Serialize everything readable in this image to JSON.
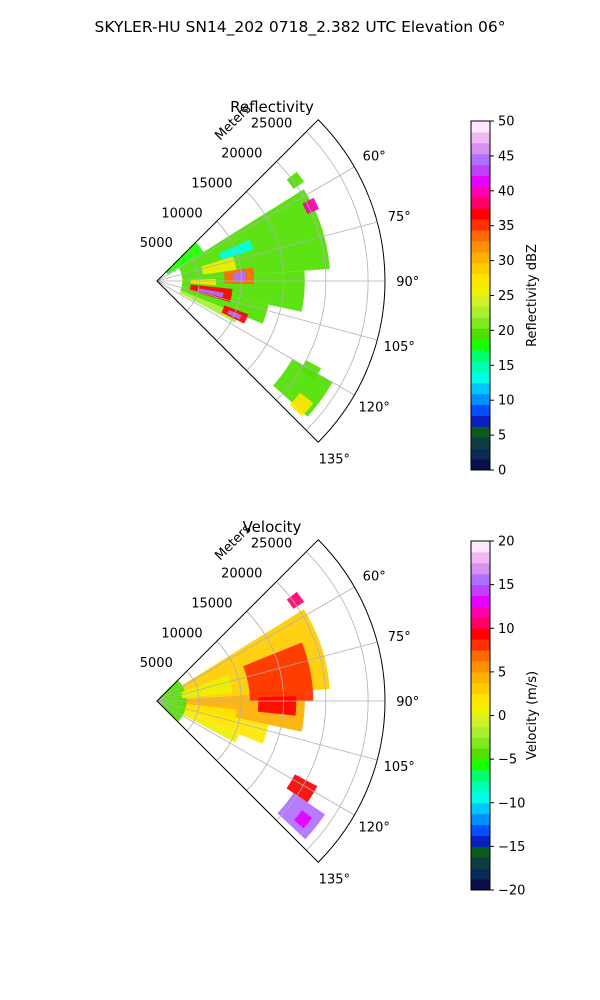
{
  "figure": {
    "suptitle": "SKYLER-HU  SN14_202  0718_2.382 UTC Elevation 06°"
  },
  "chart_data": [
    {
      "type": "heatmap",
      "subtype": "polar-sector",
      "title": "Reflectivity",
      "radial_label": "Meters",
      "radial_ticks": [
        5000,
        10000,
        15000,
        20000,
        25000
      ],
      "radial_tick_labels": [
        "5000",
        "10000",
        "15000",
        "20000",
        "25000"
      ],
      "angle_ticks": [
        60,
        75,
        90,
        105,
        120,
        135
      ],
      "angle_tick_labels": [
        "60°",
        "75°",
        "90°",
        "105°",
        "120°",
        "135°"
      ],
      "angle_range": [
        45,
        135
      ],
      "radial_max": 27000,
      "grid": true,
      "colorbar": {
        "label": "Reflectivity dBZ",
        "range": [
          0,
          50
        ],
        "ticks": [
          0,
          5,
          10,
          15,
          20,
          25,
          30,
          35,
          40,
          45,
          50
        ],
        "tick_labels": [
          "0",
          "5",
          "10",
          "15",
          "20",
          "25",
          "30",
          "35",
          "40",
          "45",
          "50"
        ],
        "colors": [
          "#0a0f4a",
          "#0a2a55",
          "#0d3d3d",
          "#0b5a1e",
          "#0a1fc0",
          "#0050ff",
          "#0090ff",
          "#00c8ff",
          "#00ffe6",
          "#00ffb0",
          "#00ff6e",
          "#1aff00",
          "#4fe000",
          "#7fe81e",
          "#a8f030",
          "#d0f028",
          "#eef000",
          "#ffe600",
          "#ffcc00",
          "#ffb000",
          "#ff9000",
          "#ff6a00",
          "#ff3000",
          "#ff0000",
          "#ff0066",
          "#ff00aa",
          "#e600ff",
          "#c040ff",
          "#b070ff",
          "#d890f0",
          "#f0b8f0",
          "#ffe6ff"
        ]
      },
      "echoes": [
        {
          "az": [
            52,
            56
          ],
          "r": [
            19500,
            21000
          ],
          "value": 20
        },
        {
          "az": [
            58,
            86
          ],
          "r": [
            3000,
            20500
          ],
          "value": 20
        },
        {
          "az": [
            86,
            102
          ],
          "r": [
            3000,
            17500
          ],
          "value": 20
        },
        {
          "az": [
            102,
            112
          ],
          "r": [
            3000,
            13500
          ],
          "value": 20
        },
        {
          "az": [
            112,
            118
          ],
          "r": [
            3000,
            10500
          ],
          "value": 22
        },
        {
          "az": [
            45,
            58
          ],
          "r": [
            1500,
            6500
          ],
          "value": 18
        },
        {
          "az": [
            120,
            132
          ],
          "r": [
            18500,
            24000
          ],
          "value": 20
        },
        {
          "az": [
            118,
            122
          ],
          "r": [
            20000,
            22000
          ],
          "value": 20
        },
        {
          "az": [
            128,
            133
          ],
          "r": [
            21500,
            23500
          ],
          "value": 28
        },
        {
          "az": [
            62,
            66
          ],
          "r": [
            19500,
            21000
          ],
          "value": 40
        },
        {
          "az": [
            82,
            92
          ],
          "r": [
            8000,
            11500
          ],
          "value": 34
        },
        {
          "az": [
            84,
            90
          ],
          "r": [
            9000,
            10500
          ],
          "value": 44
        },
        {
          "az": [
            96,
            106
          ],
          "r": [
            4000,
            9000
          ],
          "value": 36
        },
        {
          "az": [
            100,
            104
          ],
          "r": [
            5000,
            8000
          ],
          "value": 44
        },
        {
          "az": [
            110,
            116
          ],
          "r": [
            8500,
            11500
          ],
          "value": 36
        },
        {
          "az": [
            112,
            115
          ],
          "r": [
            9200,
            10800
          ],
          "value": 45
        },
        {
          "az": [
            72,
            82
          ],
          "r": [
            5500,
            9500
          ],
          "value": 26
        },
        {
          "az": [
            88,
            94
          ],
          "r": [
            4000,
            7000
          ],
          "value": 27
        },
        {
          "az": [
            66,
            72
          ],
          "r": [
            8000,
            12000
          ],
          "value": 14
        }
      ]
    },
    {
      "type": "heatmap",
      "subtype": "polar-sector",
      "title": "Velocity",
      "radial_label": "Meters",
      "radial_ticks": [
        5000,
        10000,
        15000,
        20000,
        25000
      ],
      "radial_tick_labels": [
        "5000",
        "10000",
        "15000",
        "20000",
        "25000"
      ],
      "angle_ticks": [
        60,
        75,
        90,
        105,
        120,
        135
      ],
      "angle_tick_labels": [
        "60°",
        "75°",
        "90°",
        "105°",
        "120°",
        "135°"
      ],
      "angle_range": [
        45,
        135
      ],
      "radial_max": 27000,
      "grid": true,
      "colorbar": {
        "label": "Velocity (m/s)",
        "range": [
          -20,
          20
        ],
        "ticks": [
          -20,
          -15,
          -10,
          -5,
          0,
          5,
          10,
          15,
          20
        ],
        "tick_labels": [
          "−20",
          "−15",
          "−10",
          "−5",
          "0",
          "5",
          "10",
          "15",
          "20"
        ],
        "colors": [
          "#0a0f4a",
          "#0a2a55",
          "#0d3d3d",
          "#0b5a1e",
          "#0a1fc0",
          "#0050ff",
          "#0090ff",
          "#00c8ff",
          "#00ffe6",
          "#00ffb0",
          "#00ff6e",
          "#1aff00",
          "#4fe000",
          "#7fe81e",
          "#a8f030",
          "#d0f028",
          "#eef000",
          "#ffe600",
          "#ffcc00",
          "#ffb000",
          "#ff9000",
          "#ff6a00",
          "#ff3000",
          "#ff0000",
          "#ff0066",
          "#ff00aa",
          "#e600ff",
          "#c040ff",
          "#b070ff",
          "#d890f0",
          "#f0b8f0",
          "#ffe6ff"
        ]
      },
      "echoes": [
        {
          "az": [
            52,
            56
          ],
          "r": [
            19500,
            21000
          ],
          "value": 10
        },
        {
          "az": [
            58,
            86
          ],
          "r": [
            3000,
            20500
          ],
          "value": 3
        },
        {
          "az": [
            86,
            102
          ],
          "r": [
            3000,
            17500
          ],
          "value": 4
        },
        {
          "az": [
            102,
            112
          ],
          "r": [
            3000,
            13500
          ],
          "value": 2
        },
        {
          "az": [
            112,
            118
          ],
          "r": [
            3000,
            10500
          ],
          "value": 1
        },
        {
          "az": [
            45,
            135
          ],
          "r": [
            0,
            3500
          ],
          "value": -4
        },
        {
          "az": [
            68,
            90
          ],
          "r": [
            11000,
            18500
          ],
          "value": 8
        },
        {
          "az": [
            88,
            96
          ],
          "r": [
            12000,
            16500
          ],
          "value": 9
        },
        {
          "az": [
            70,
            84
          ],
          "r": [
            3000,
            9000
          ],
          "value": 1
        },
        {
          "az": [
            96,
            108
          ],
          "r": [
            3500,
            9500
          ],
          "value": 2
        },
        {
          "az": [
            118,
            124
          ],
          "r": [
            18500,
            21500
          ],
          "value": 9
        },
        {
          "az": [
            124,
            133
          ],
          "r": [
            19500,
            24000
          ],
          "value": 15
        },
        {
          "az": [
            127,
            131
          ],
          "r": [
            21500,
            23000
          ],
          "value": 13
        }
      ]
    }
  ]
}
